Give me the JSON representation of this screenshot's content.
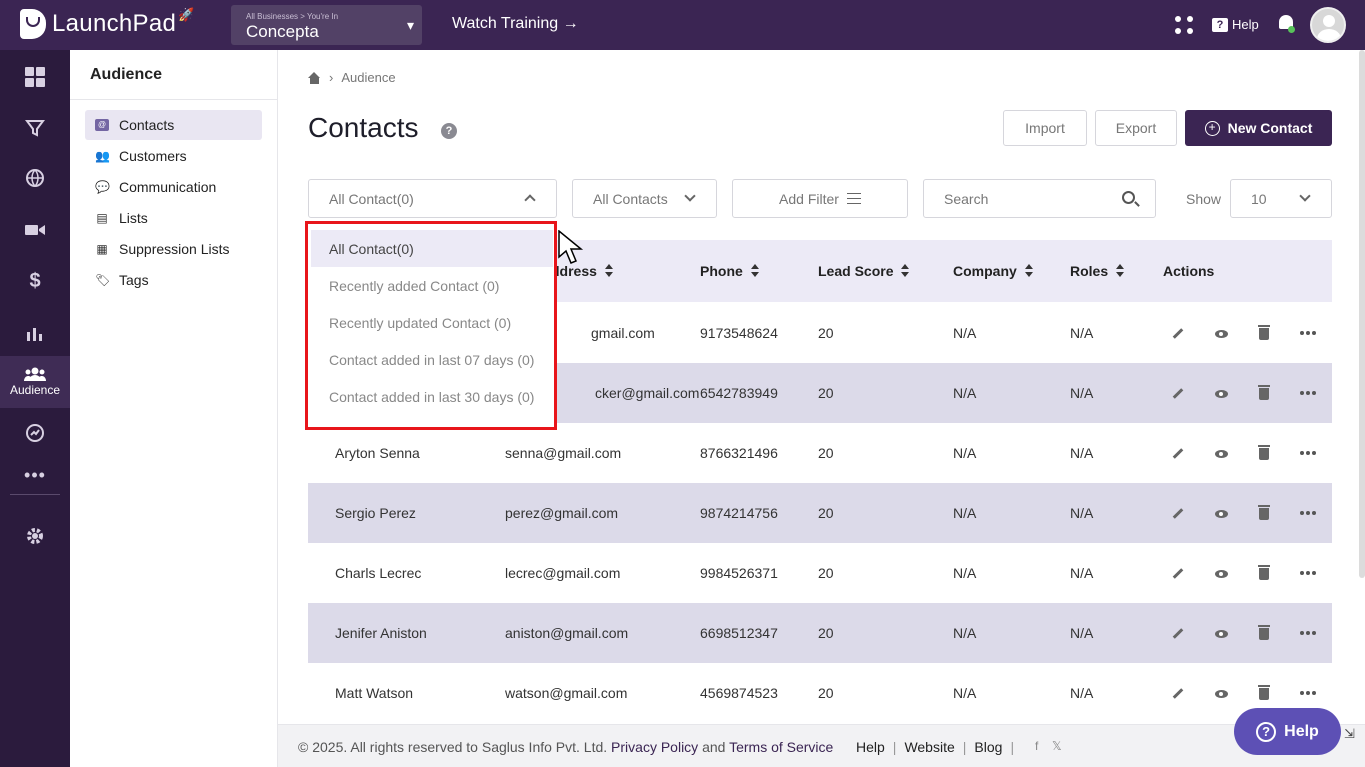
{
  "app": {
    "logo_text": "LaunchPad",
    "business_path": "All Businesses > You're In",
    "business_name": "Concepta",
    "watch_training": "Watch Training →",
    "help_label": "Help"
  },
  "rail": {
    "active_label": "Audience",
    "icons": [
      "dashboard-icon",
      "funnel-icon",
      "globe-icon",
      "video-icon",
      "dollar-icon",
      "analytics-icon",
      "audience-icon",
      "reports-icon",
      "more-icon",
      "settings-icon"
    ]
  },
  "subnav": {
    "title": "Audience",
    "items": [
      {
        "label": "Contacts",
        "icon": "@"
      },
      {
        "label": "Customers",
        "icon": "👥"
      },
      {
        "label": "Communication",
        "icon": "💬"
      },
      {
        "label": "Lists",
        "icon": "▤"
      },
      {
        "label": "Suppression Lists",
        "icon": "▦"
      },
      {
        "label": "Tags",
        "icon": "🏷"
      }
    ]
  },
  "breadcrumb": {
    "current": "Audience"
  },
  "page": {
    "title": "Contacts",
    "help_glyph": "?"
  },
  "buttons": {
    "import": "Import",
    "export": "Export",
    "new_contact": "New Contact"
  },
  "filters": {
    "segment_value": "All Contact(0)",
    "contacts_value": "All Contacts",
    "add_filter": "Add Filter",
    "search_placeholder": "Search",
    "show_label": "Show",
    "show_value": "10"
  },
  "dropdown": {
    "options": [
      "All Contact(0)",
      "Recently added Contact (0)",
      "Recently updated Contact (0)",
      "Contact added in last 07 days (0)",
      "Contact added in last 30 days (0)"
    ]
  },
  "table": {
    "headers": {
      "email": "ddress",
      "phone": "Phone",
      "lead_score": "Lead Score",
      "company": "Company",
      "roles": "Roles",
      "actions": "Actions"
    },
    "rows": [
      {
        "name": "",
        "email": "gmail.com",
        "phone": "9173548624",
        "score": "20",
        "company": "N/A",
        "roles": "N/A"
      },
      {
        "name": "",
        "email": "cker@gmail.com",
        "phone": "6542783949",
        "score": "20",
        "company": "N/A",
        "roles": "N/A"
      },
      {
        "name": "Aryton Senna",
        "email": "senna@gmail.com",
        "phone": "8766321496",
        "score": "20",
        "company": "N/A",
        "roles": "N/A"
      },
      {
        "name": "Sergio Perez",
        "email": "perez@gmail.com",
        "phone": "9874214756",
        "score": "20",
        "company": "N/A",
        "roles": "N/A"
      },
      {
        "name": "Charls Lecrec",
        "email": "lecrec@gmail.com",
        "phone": "9984526371",
        "score": "20",
        "company": "N/A",
        "roles": "N/A"
      },
      {
        "name": "Jenifer Aniston",
        "email": "aniston@gmail.com",
        "phone": "6698512347",
        "score": "20",
        "company": "N/A",
        "roles": "N/A"
      },
      {
        "name": "Matt Watson",
        "email": "watson@gmail.com",
        "phone": "4569874523",
        "score": "20",
        "company": "N/A",
        "roles": "N/A"
      }
    ]
  },
  "footer": {
    "copyright": "©  2025. All rights reserved to Saglus Info Pvt. Ltd.",
    "privacy": "Privacy Policy",
    "and": "and",
    "terms": "Terms of Service",
    "help": "Help",
    "website": "Website",
    "blog": "Blog",
    "sep": "|",
    "facebook": "f",
    "x": "𝕏"
  },
  "help_fab": {
    "label": "Help",
    "glyph": "?"
  },
  "colors": {
    "brand": "#3b2553",
    "highlight": "#e8151b",
    "row_alt": "#dcdae9"
  }
}
